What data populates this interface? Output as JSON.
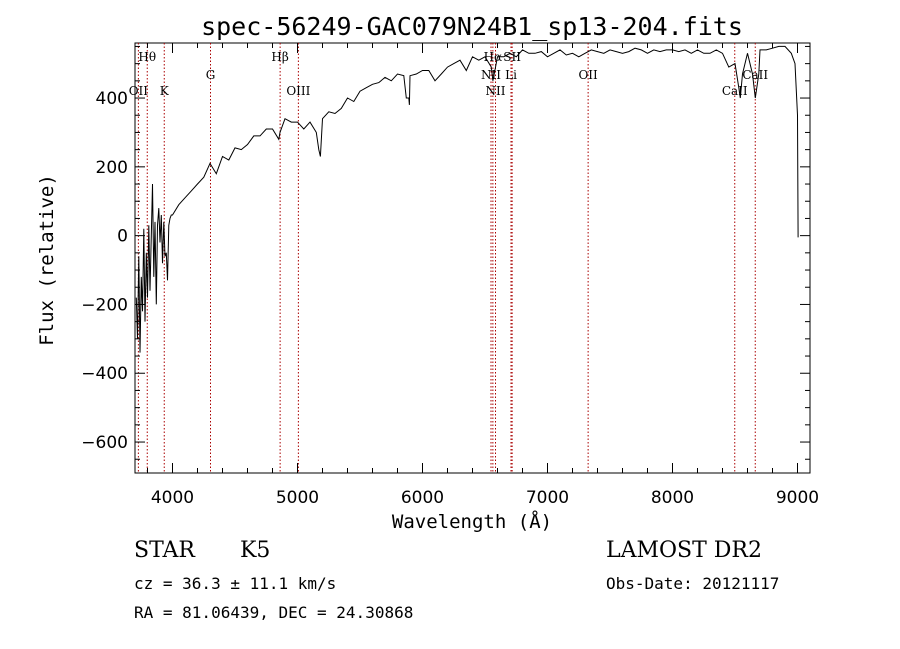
{
  "chart_data": {
    "type": "line",
    "title": "spec-56249-GAC079N24B1_sp13-204.fits",
    "xlabel": "Wavelength (Å)",
    "ylabel": "Flux (relative)",
    "xlim": [
      3700,
      9100
    ],
    "ylim": [
      -690,
      560
    ],
    "xticks": [
      4000,
      5000,
      6000,
      7000,
      8000,
      9000
    ],
    "yticks": [
      -600,
      -400,
      -200,
      0,
      200,
      400
    ],
    "xtick_labels": [
      "4000",
      "5000",
      "6000",
      "7000",
      "8000",
      "9000"
    ],
    "ytick_labels": [
      "−600",
      "−400",
      "−200",
      "0",
      "200",
      "400"
    ],
    "grid": false,
    "series": [
      {
        "x": [
          3710,
          3720,
          3730,
          3740,
          3750,
          3760,
          3770,
          3780,
          3790,
          3800,
          3810,
          3820,
          3830,
          3840,
          3850,
          3860,
          3870,
          3880,
          3890,
          3900,
          3910,
          3920,
          3930,
          3940,
          3950,
          3960,
          3970,
          3980,
          3990,
          4000,
          4050,
          4100,
          4150,
          4200,
          4250,
          4300,
          4350,
          4400,
          4450,
          4500,
          4550,
          4600,
          4650,
          4700,
          4750,
          4800,
          4850,
          4860,
          4900,
          4950,
          5000,
          5050,
          5100,
          5150,
          5170,
          5183,
          5200,
          5250,
          5300,
          5350,
          5400,
          5450,
          5500,
          5550,
          5600,
          5650,
          5700,
          5750,
          5800,
          5850,
          5870,
          5890,
          5895,
          5900,
          5950,
          6000,
          6050,
          6100,
          6150,
          6200,
          6250,
          6300,
          6350,
          6400,
          6450,
          6500,
          6550,
          6563,
          6600,
          6650,
          6700,
          6750,
          6800,
          6850,
          6900,
          6950,
          7000,
          7050,
          7100,
          7150,
          7200,
          7250,
          7300,
          7350,
          7400,
          7450,
          7500,
          7550,
          7600,
          7650,
          7700,
          7750,
          7800,
          7850,
          7900,
          7950,
          8000,
          8050,
          8100,
          8150,
          8200,
          8250,
          8300,
          8350,
          8400,
          8450,
          8500,
          8530,
          8542,
          8560,
          8600,
          8640,
          8662,
          8690,
          8700,
          8750,
          8800,
          8850,
          8900,
          8950,
          8980,
          9000,
          9005
        ],
        "values": [
          -180,
          -300,
          -60,
          -340,
          -120,
          -220,
          20,
          -250,
          -50,
          -180,
          30,
          -160,
          0,
          150,
          -120,
          40,
          -200,
          30,
          80,
          -20,
          60,
          -80,
          40,
          -60,
          -50,
          -130,
          30,
          50,
          60,
          60,
          90,
          110,
          130,
          150,
          170,
          210,
          180,
          230,
          220,
          255,
          250,
          265,
          290,
          290,
          310,
          310,
          280,
          300,
          340,
          330,
          330,
          310,
          330,
          300,
          250,
          230,
          340,
          360,
          355,
          370,
          400,
          390,
          420,
          430,
          440,
          445,
          460,
          450,
          470,
          465,
          400,
          400,
          380,
          465,
          470,
          480,
          480,
          450,
          470,
          490,
          500,
          510,
          480,
          520,
          510,
          520,
          490,
          450,
          520,
          520,
          530,
          520,
          540,
          530,
          530,
          535,
          520,
          530,
          540,
          525,
          530,
          520,
          530,
          540,
          535,
          530,
          540,
          535,
          530,
          535,
          545,
          540,
          530,
          540,
          535,
          540,
          540,
          535,
          540,
          530,
          540,
          530,
          530,
          540,
          530,
          490,
          500,
          430,
          400,
          470,
          530,
          470,
          400,
          470,
          540,
          540,
          545,
          550,
          550,
          530,
          500,
          350,
          -5
        ]
      }
    ],
    "spectral_lines": [
      {
        "name": "Hθ",
        "x": 3798,
        "row": "top"
      },
      {
        "name": "OII",
        "x": 3727,
        "row": "bottom"
      },
      {
        "name": "K",
        "x": 3934,
        "row": "bottom"
      },
      {
        "name": "G",
        "x": 4304,
        "row": "middle"
      },
      {
        "name": "Hβ",
        "x": 4861,
        "row": "top"
      },
      {
        "name": "OIII",
        "x": 5007,
        "row": "bottom"
      },
      {
        "name": "Hα",
        "x": 6563,
        "row": "top"
      },
      {
        "name": "NII",
        "x": 6548,
        "row": "middle"
      },
      {
        "name": "NII",
        "x": 6584,
        "row": "bottom"
      },
      {
        "name": "SII",
        "x": 6717,
        "row": "top"
      },
      {
        "name": "Li",
        "x": 6708,
        "row": "middle"
      },
      {
        "name": "OII",
        "x": 7325,
        "row": "middle"
      },
      {
        "name": "CaII",
        "x": 8498,
        "row": "bottom"
      },
      {
        "name": "CaII",
        "x": 8662,
        "row": "middle"
      }
    ],
    "line_color": "#000000",
    "marker_color": "#aa0000"
  },
  "info": {
    "object_type": "STAR",
    "subclass": "K5",
    "survey": "LAMOST DR2",
    "cz": "cz = 36.3 ± 11.1 km/s",
    "obs_date": "Obs-Date: 20121117",
    "coords": "RA =  81.06439, DEC =  24.30868"
  }
}
